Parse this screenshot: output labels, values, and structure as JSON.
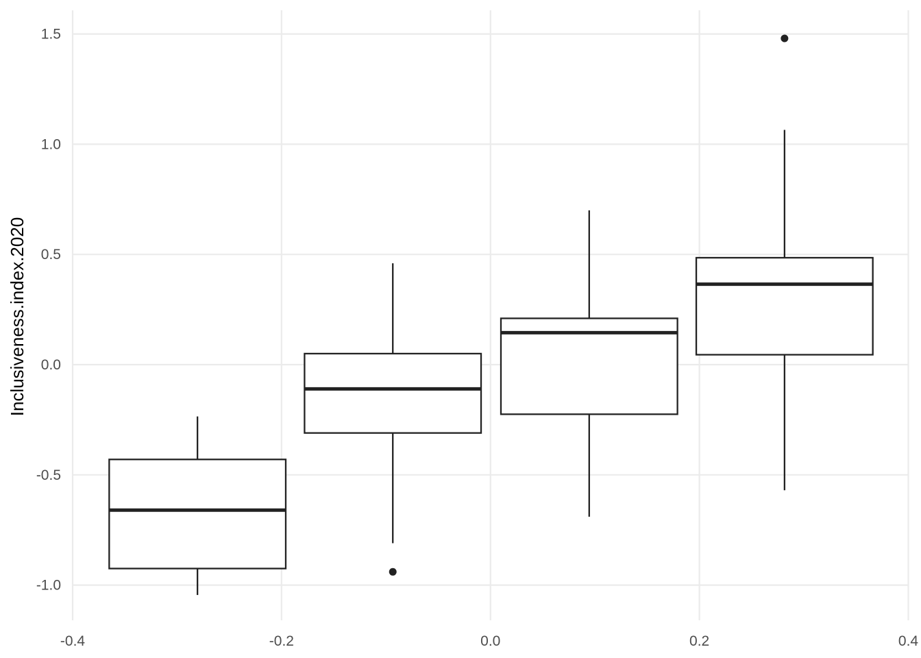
{
  "chart_data": {
    "type": "boxplot",
    "title": "",
    "xlabel": "",
    "ylabel": "Inclusiveness.index.2020",
    "xlim": [
      -0.4,
      0.4
    ],
    "ylim": [
      -1.15,
      1.6
    ],
    "x_ticks": [
      -0.4,
      -0.2,
      0.0,
      0.2,
      0.4
    ],
    "x_tick_labels": [
      "-0.4",
      "-0.2",
      "0.0",
      "0.2",
      "0.4"
    ],
    "y_ticks": [
      -1.0,
      -0.5,
      0.0,
      0.5,
      1.0,
      1.5
    ],
    "y_tick_labels": [
      "-1.0",
      "-0.5",
      "0.0",
      "0.5",
      "1.0",
      "1.5"
    ],
    "grid": true,
    "boxes": [
      {
        "x_left": -0.365,
        "x_right": -0.196,
        "whisker_low": -1.045,
        "q1": -0.925,
        "median": -0.66,
        "q3": -0.43,
        "whisker_high": -0.235,
        "outliers": []
      },
      {
        "x_left": -0.178,
        "x_right": -0.009,
        "whisker_low": -0.81,
        "q1": -0.31,
        "median": -0.11,
        "q3": 0.05,
        "whisker_high": 0.46,
        "outliers": [
          -0.94
        ]
      },
      {
        "x_left": 0.01,
        "x_right": 0.179,
        "whisker_low": -0.69,
        "q1": -0.225,
        "median": 0.145,
        "q3": 0.21,
        "whisker_high": 0.7,
        "outliers": []
      },
      {
        "x_left": 0.197,
        "x_right": 0.366,
        "whisker_low": -0.57,
        "q1": 0.045,
        "median": 0.365,
        "q3": 0.485,
        "whisker_high": 1.065,
        "outliers": [
          1.48
        ]
      }
    ]
  }
}
